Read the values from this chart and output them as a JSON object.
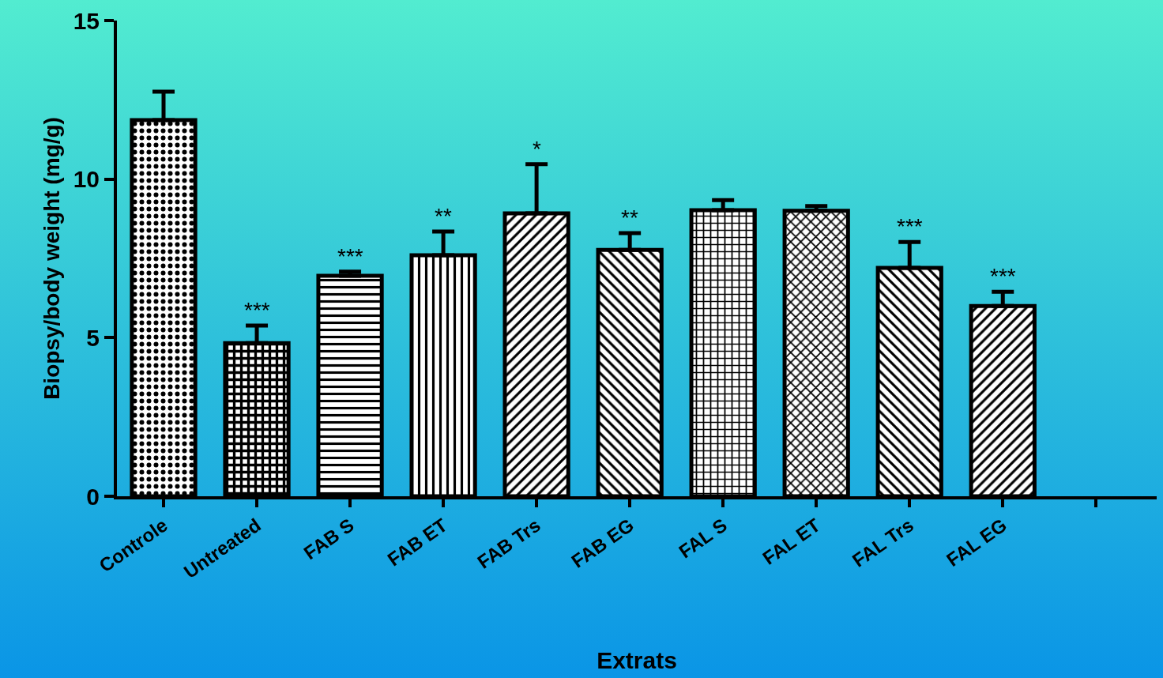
{
  "chart_data": {
    "type": "bar",
    "xlabel": "Extrats",
    "ylabel": "Biopsy/body weight (mg/g)",
    "categories": [
      "Controle",
      "Untreated",
      "FAB S",
      "FAB ET",
      "FAB Trs",
      "FAB EG",
      "FAL S",
      "FAL ET",
      "FAL Trs",
      "FAL EG",
      null
    ],
    "values": [
      11.86,
      4.83,
      6.95,
      7.6,
      8.92,
      7.77,
      9.02,
      9.0,
      7.2,
      6.0,
      null
    ],
    "errors": [
      [
        11.86,
        12.76
      ],
      [
        4.83,
        5.38
      ],
      [
        6.95,
        7.08
      ],
      [
        7.6,
        8.35
      ],
      [
        8.92,
        10.47
      ],
      [
        7.77,
        8.3
      ],
      [
        9.02,
        9.34
      ],
      [
        9.0,
        9.15
      ],
      [
        7.2,
        8.02
      ],
      [
        6.0,
        6.45
      ],
      null
    ],
    "ylim": [
      0,
      15
    ],
    "yticks": [
      0,
      5,
      10,
      15
    ],
    "grid": false,
    "annotations": [
      {
        "text": "***",
        "x": "Untreated",
        "y": 5.38
      },
      {
        "text": "***",
        "x": "FAB S",
        "y": 7.08
      },
      {
        "text": "**",
        "x": "FAB ET",
        "y": 8.35
      },
      {
        "text": "*",
        "x": "FAB Trs",
        "y": 10.47
      },
      {
        "text": "**",
        "x": "FAB EG",
        "y": 8.3
      },
      {
        "text": "***",
        "x": "FAL Trs",
        "y": 8.02
      },
      {
        "text": "***",
        "x": "FAL EG",
        "y": 6.45
      }
    ]
  }
}
